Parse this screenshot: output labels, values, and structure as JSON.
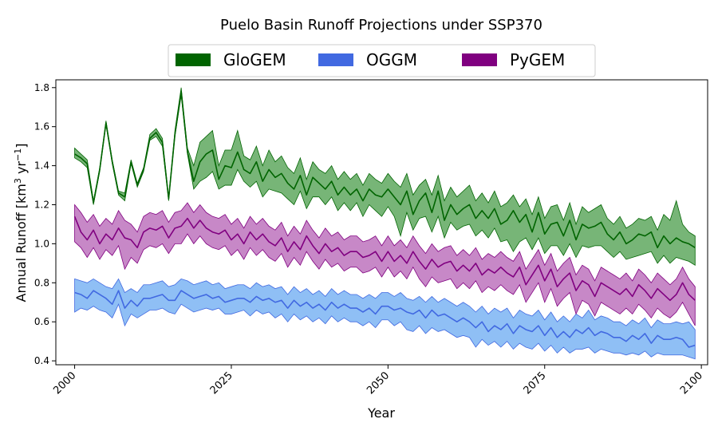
{
  "chart_data": {
    "type": "area",
    "title": "Puelo Basin Runoff Projections under SSP370",
    "xlabel": "Year",
    "ylabel_main": "Annual Runoff [km",
    "ylabel_sup1": "3",
    "ylabel_mid": " yr",
    "ylabel_sup2": "−1",
    "ylabel_end": "]",
    "xlim": [
      1997,
      2101
    ],
    "ylim": [
      0.38,
      1.84
    ],
    "xticks": [
      2000,
      2025,
      2050,
      2075,
      2100
    ],
    "yticks": [
      0.4,
      0.6,
      0.8,
      1.0,
      1.2,
      1.4,
      1.6,
      1.8
    ],
    "legend_position": "top-center",
    "years_start": 2000,
    "series": [
      {
        "name": "GloGEM",
        "line_color": "#006400",
        "fill_color": "#4a9c4a",
        "mean": [
          1.46,
          1.44,
          1.41,
          1.21,
          1.38,
          1.62,
          1.42,
          1.26,
          1.24,
          1.42,
          1.3,
          1.38,
          1.54,
          1.57,
          1.52,
          1.23,
          1.56,
          1.78,
          1.47,
          1.32,
          1.42,
          1.46,
          1.48,
          1.33,
          1.4,
          1.39,
          1.47,
          1.38,
          1.36,
          1.42,
          1.32,
          1.38,
          1.34,
          1.36,
          1.31,
          1.28,
          1.35,
          1.25,
          1.34,
          1.31,
          1.28,
          1.32,
          1.25,
          1.29,
          1.25,
          1.28,
          1.22,
          1.28,
          1.25,
          1.24,
          1.28,
          1.24,
          1.2,
          1.27,
          1.15,
          1.22,
          1.26,
          1.16,
          1.27,
          1.12,
          1.2,
          1.15,
          1.18,
          1.2,
          1.13,
          1.17,
          1.13,
          1.18,
          1.1,
          1.12,
          1.17,
          1.11,
          1.15,
          1.06,
          1.16,
          1.05,
          1.1,
          1.11,
          1.04,
          1.12,
          1.02,
          1.1,
          1.08,
          1.09,
          1.11,
          1.05,
          1.02,
          1.06,
          1.0,
          1.02,
          1.05,
          1.04,
          1.06,
          0.98,
          1.04,
          1.0,
          1.03,
          1.01,
          1.0,
          0.98
        ],
        "lower": [
          1.44,
          1.42,
          1.39,
          1.2,
          1.37,
          1.61,
          1.41,
          1.25,
          1.22,
          1.41,
          1.29,
          1.37,
          1.53,
          1.55,
          1.5,
          1.22,
          1.55,
          1.76,
          1.46,
          1.28,
          1.32,
          1.34,
          1.37,
          1.28,
          1.3,
          1.3,
          1.38,
          1.32,
          1.29,
          1.32,
          1.24,
          1.28,
          1.27,
          1.26,
          1.23,
          1.2,
          1.27,
          1.18,
          1.24,
          1.24,
          1.2,
          1.24,
          1.17,
          1.21,
          1.17,
          1.21,
          1.14,
          1.2,
          1.17,
          1.14,
          1.19,
          1.14,
          1.04,
          1.16,
          1.07,
          1.13,
          1.14,
          1.06,
          1.14,
          1.03,
          1.11,
          1.07,
          1.09,
          1.1,
          1.04,
          1.07,
          1.03,
          1.08,
          1.01,
          1.02,
          0.96,
          1.01,
          1.03,
          0.97,
          1.03,
          0.95,
          0.99,
          0.99,
          0.94,
          1.0,
          0.93,
          0.99,
          0.98,
          0.99,
          0.99,
          0.96,
          0.93,
          0.96,
          0.92,
          0.93,
          0.94,
          0.95,
          0.96,
          0.9,
          0.94,
          0.9,
          0.93,
          0.92,
          0.91,
          0.89
        ],
        "upper": [
          1.49,
          1.46,
          1.43,
          1.22,
          1.39,
          1.63,
          1.43,
          1.27,
          1.26,
          1.43,
          1.31,
          1.39,
          1.56,
          1.59,
          1.54,
          1.24,
          1.58,
          1.8,
          1.49,
          1.4,
          1.52,
          1.55,
          1.58,
          1.4,
          1.48,
          1.48,
          1.58,
          1.45,
          1.43,
          1.5,
          1.4,
          1.48,
          1.42,
          1.45,
          1.39,
          1.36,
          1.44,
          1.33,
          1.42,
          1.38,
          1.36,
          1.4,
          1.33,
          1.37,
          1.33,
          1.36,
          1.3,
          1.36,
          1.33,
          1.31,
          1.36,
          1.32,
          1.29,
          1.36,
          1.25,
          1.3,
          1.33,
          1.25,
          1.35,
          1.22,
          1.29,
          1.24,
          1.27,
          1.3,
          1.22,
          1.26,
          1.21,
          1.27,
          1.19,
          1.21,
          1.25,
          1.19,
          1.23,
          1.15,
          1.24,
          1.13,
          1.19,
          1.2,
          1.12,
          1.21,
          1.1,
          1.19,
          1.16,
          1.18,
          1.2,
          1.13,
          1.1,
          1.14,
          1.08,
          1.1,
          1.13,
          1.12,
          1.14,
          1.07,
          1.15,
          1.12,
          1.22,
          1.1,
          1.06,
          1.04
        ]
      },
      {
        "name": "OGGM",
        "line_color": "#4169e1",
        "fill_color": "#6aaaf2",
        "mean": [
          0.75,
          0.74,
          0.72,
          0.76,
          0.74,
          0.72,
          0.69,
          0.76,
          0.67,
          0.71,
          0.68,
          0.72,
          0.72,
          0.73,
          0.74,
          0.71,
          0.71,
          0.76,
          0.74,
          0.72,
          0.73,
          0.74,
          0.72,
          0.73,
          0.7,
          0.71,
          0.72,
          0.72,
          0.7,
          0.73,
          0.71,
          0.72,
          0.7,
          0.71,
          0.67,
          0.71,
          0.68,
          0.7,
          0.67,
          0.69,
          0.66,
          0.7,
          0.67,
          0.69,
          0.67,
          0.67,
          0.65,
          0.67,
          0.64,
          0.68,
          0.68,
          0.66,
          0.67,
          0.65,
          0.64,
          0.66,
          0.62,
          0.66,
          0.63,
          0.64,
          0.62,
          0.6,
          0.62,
          0.6,
          0.57,
          0.6,
          0.55,
          0.58,
          0.56,
          0.59,
          0.54,
          0.58,
          0.56,
          0.55,
          0.58,
          0.53,
          0.57,
          0.52,
          0.55,
          0.52,
          0.56,
          0.54,
          0.57,
          0.53,
          0.55,
          0.54,
          0.52,
          0.52,
          0.5,
          0.53,
          0.51,
          0.54,
          0.49,
          0.53,
          0.51,
          0.51,
          0.52,
          0.51,
          0.47,
          0.48
        ],
        "lower": [
          0.65,
          0.67,
          0.66,
          0.68,
          0.66,
          0.65,
          0.62,
          0.69,
          0.58,
          0.64,
          0.62,
          0.64,
          0.66,
          0.66,
          0.67,
          0.65,
          0.64,
          0.69,
          0.67,
          0.65,
          0.66,
          0.67,
          0.66,
          0.67,
          0.64,
          0.64,
          0.65,
          0.66,
          0.63,
          0.66,
          0.64,
          0.65,
          0.62,
          0.64,
          0.6,
          0.64,
          0.61,
          0.63,
          0.6,
          0.62,
          0.59,
          0.63,
          0.6,
          0.62,
          0.6,
          0.6,
          0.58,
          0.6,
          0.57,
          0.61,
          0.61,
          0.58,
          0.6,
          0.56,
          0.55,
          0.58,
          0.54,
          0.57,
          0.55,
          0.56,
          0.54,
          0.52,
          0.53,
          0.52,
          0.47,
          0.51,
          0.48,
          0.5,
          0.47,
          0.5,
          0.46,
          0.49,
          0.47,
          0.46,
          0.49,
          0.45,
          0.48,
          0.44,
          0.47,
          0.44,
          0.46,
          0.46,
          0.47,
          0.44,
          0.46,
          0.45,
          0.44,
          0.44,
          0.43,
          0.44,
          0.43,
          0.45,
          0.42,
          0.44,
          0.43,
          0.43,
          0.43,
          0.43,
          0.42,
          0.41
        ],
        "upper": [
          0.82,
          0.81,
          0.8,
          0.82,
          0.8,
          0.78,
          0.77,
          0.82,
          0.75,
          0.77,
          0.75,
          0.79,
          0.79,
          0.8,
          0.81,
          0.78,
          0.79,
          0.82,
          0.81,
          0.79,
          0.8,
          0.81,
          0.79,
          0.8,
          0.77,
          0.78,
          0.79,
          0.79,
          0.77,
          0.8,
          0.78,
          0.79,
          0.77,
          0.78,
          0.74,
          0.78,
          0.75,
          0.77,
          0.74,
          0.76,
          0.73,
          0.77,
          0.74,
          0.76,
          0.74,
          0.74,
          0.72,
          0.74,
          0.72,
          0.75,
          0.75,
          0.73,
          0.75,
          0.72,
          0.71,
          0.73,
          0.7,
          0.73,
          0.7,
          0.72,
          0.7,
          0.68,
          0.7,
          0.68,
          0.65,
          0.68,
          0.64,
          0.67,
          0.65,
          0.67,
          0.62,
          0.66,
          0.64,
          0.63,
          0.66,
          0.61,
          0.65,
          0.6,
          0.63,
          0.6,
          0.64,
          0.62,
          0.66,
          0.61,
          0.63,
          0.62,
          0.6,
          0.6,
          0.58,
          0.61,
          0.59,
          0.62,
          0.57,
          0.61,
          0.59,
          0.59,
          0.6,
          0.59,
          0.6,
          0.56
        ]
      },
      {
        "name": "PyGEM",
        "line_color": "#800080",
        "fill_color": "#b460b4",
        "mean": [
          1.14,
          1.06,
          1.02,
          1.07,
          1.0,
          1.05,
          1.02,
          1.08,
          1.03,
          1.02,
          0.98,
          1.06,
          1.08,
          1.07,
          1.09,
          1.03,
          1.08,
          1.09,
          1.13,
          1.08,
          1.12,
          1.08,
          1.06,
          1.05,
          1.07,
          1.02,
          1.05,
          1.0,
          1.06,
          1.02,
          1.05,
          1.01,
          0.99,
          1.03,
          0.96,
          1.01,
          0.97,
          1.04,
          0.99,
          0.95,
          1.0,
          0.96,
          0.98,
          0.94,
          0.96,
          0.96,
          0.93,
          0.94,
          0.96,
          0.91,
          0.96,
          0.91,
          0.94,
          0.9,
          0.96,
          0.91,
          0.87,
          0.92,
          0.88,
          0.9,
          0.91,
          0.86,
          0.89,
          0.86,
          0.9,
          0.84,
          0.87,
          0.85,
          0.88,
          0.85,
          0.83,
          0.88,
          0.79,
          0.84,
          0.89,
          0.81,
          0.87,
          0.78,
          0.82,
          0.85,
          0.76,
          0.81,
          0.79,
          0.73,
          0.8,
          0.78,
          0.76,
          0.74,
          0.77,
          0.73,
          0.79,
          0.76,
          0.72,
          0.77,
          0.74,
          0.71,
          0.74,
          0.8,
          0.74,
          0.71
        ],
        "lower": [
          1.01,
          0.98,
          0.93,
          0.98,
          0.92,
          0.97,
          0.94,
          0.99,
          0.87,
          0.93,
          0.9,
          0.97,
          0.99,
          0.98,
          1.0,
          0.95,
          1.0,
          1.0,
          1.05,
          1.0,
          1.04,
          1.0,
          0.98,
          0.97,
          0.99,
          0.94,
          0.97,
          0.92,
          0.98,
          0.94,
          0.97,
          0.93,
          0.91,
          0.95,
          0.88,
          0.93,
          0.89,
          0.96,
          0.91,
          0.87,
          0.92,
          0.88,
          0.9,
          0.86,
          0.88,
          0.88,
          0.85,
          0.86,
          0.88,
          0.83,
          0.88,
          0.83,
          0.86,
          0.82,
          0.88,
          0.82,
          0.78,
          0.83,
          0.8,
          0.81,
          0.82,
          0.77,
          0.8,
          0.77,
          0.81,
          0.75,
          0.78,
          0.76,
          0.79,
          0.76,
          0.74,
          0.79,
          0.7,
          0.75,
          0.8,
          0.7,
          0.77,
          0.68,
          0.72,
          0.75,
          0.64,
          0.71,
          0.69,
          0.63,
          0.7,
          0.68,
          0.66,
          0.64,
          0.67,
          0.64,
          0.69,
          0.66,
          0.62,
          0.67,
          0.64,
          0.62,
          0.65,
          0.7,
          0.64,
          0.58
        ],
        "upper": [
          1.2,
          1.16,
          1.11,
          1.15,
          1.09,
          1.13,
          1.1,
          1.17,
          1.12,
          1.1,
          1.06,
          1.14,
          1.16,
          1.15,
          1.17,
          1.11,
          1.16,
          1.17,
          1.21,
          1.16,
          1.2,
          1.16,
          1.14,
          1.13,
          1.15,
          1.1,
          1.13,
          1.08,
          1.14,
          1.1,
          1.13,
          1.09,
          1.07,
          1.11,
          1.04,
          1.09,
          1.05,
          1.12,
          1.07,
          1.03,
          1.08,
          1.04,
          1.06,
          1.02,
          1.04,
          1.04,
          1.01,
          1.02,
          1.04,
          0.99,
          1.04,
          0.99,
          1.02,
          0.98,
          1.04,
          0.99,
          0.95,
          1.0,
          0.96,
          0.98,
          0.99,
          0.94,
          0.97,
          0.94,
          0.98,
          0.92,
          0.95,
          0.93,
          0.96,
          0.93,
          0.91,
          0.96,
          0.87,
          0.92,
          0.97,
          0.89,
          0.95,
          0.86,
          0.9,
          0.93,
          0.84,
          0.89,
          0.87,
          0.81,
          0.88,
          0.86,
          0.84,
          0.82,
          0.85,
          0.81,
          0.87,
          0.84,
          0.8,
          0.85,
          0.82,
          0.79,
          0.82,
          0.88,
          0.82,
          0.78
        ]
      }
    ]
  }
}
